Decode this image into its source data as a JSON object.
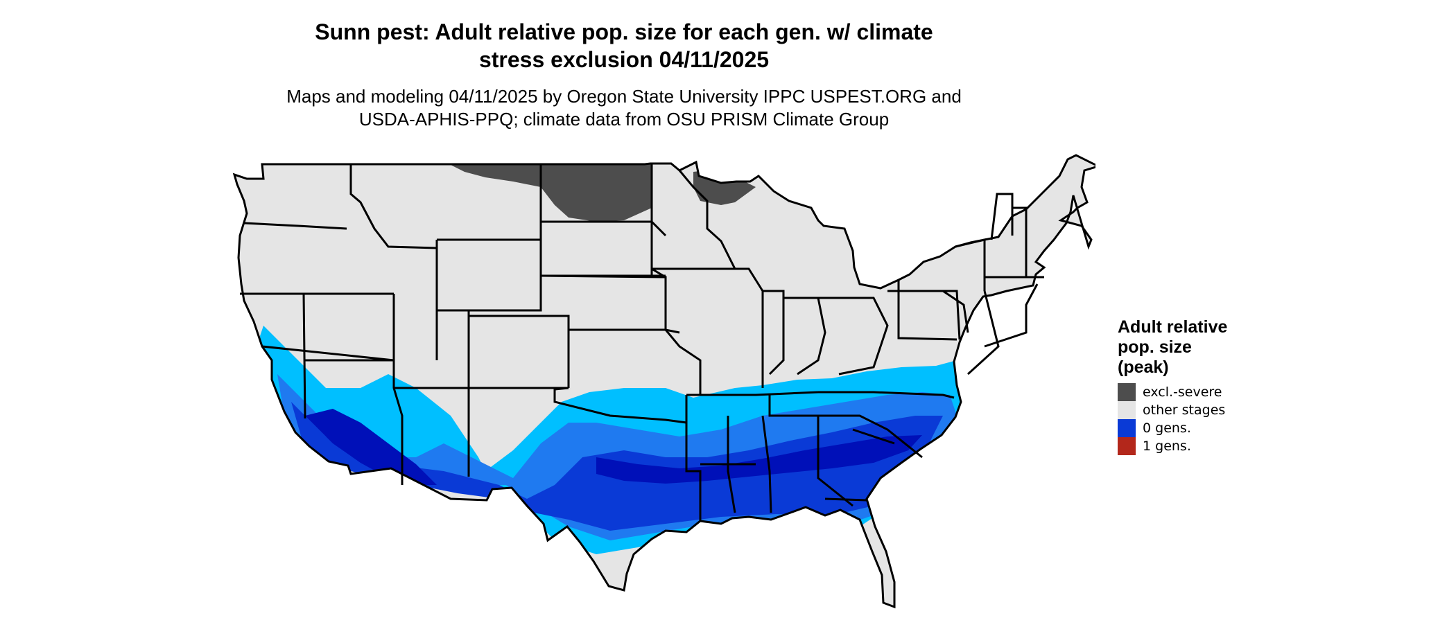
{
  "title": {
    "line1": "Sunn pest: Adult relative pop. size for each gen. w/ climate",
    "line2": "stress exclusion 04/11/2025"
  },
  "subtitle": {
    "line1": "Maps and modeling 04/11/2025 by Oregon State University IPPC USPEST.ORG and",
    "line2": "USDA-APHIS-PPQ; climate data from OSU PRISM Climate Group"
  },
  "legend": {
    "title_lines": [
      "Adult relative",
      "pop. size",
      "(peak)"
    ],
    "items": [
      {
        "label": "excl.-severe",
        "color": "#4d4d4d"
      },
      {
        "label": "other stages",
        "color": "#e5e5e5"
      },
      {
        "label": "0 gens.",
        "color": "#0a3ad6"
      },
      {
        "label": "1 gens.",
        "color": "#b3271b"
      }
    ]
  },
  "map_colors": {
    "land": "#e5e5e5",
    "border": "#000000",
    "excluded": "#4d4d4d",
    "light_blue": "#00bfff",
    "mid_blue": "#1f7af0",
    "blue": "#0a3ad6",
    "dark_blue": "#0010b8"
  }
}
